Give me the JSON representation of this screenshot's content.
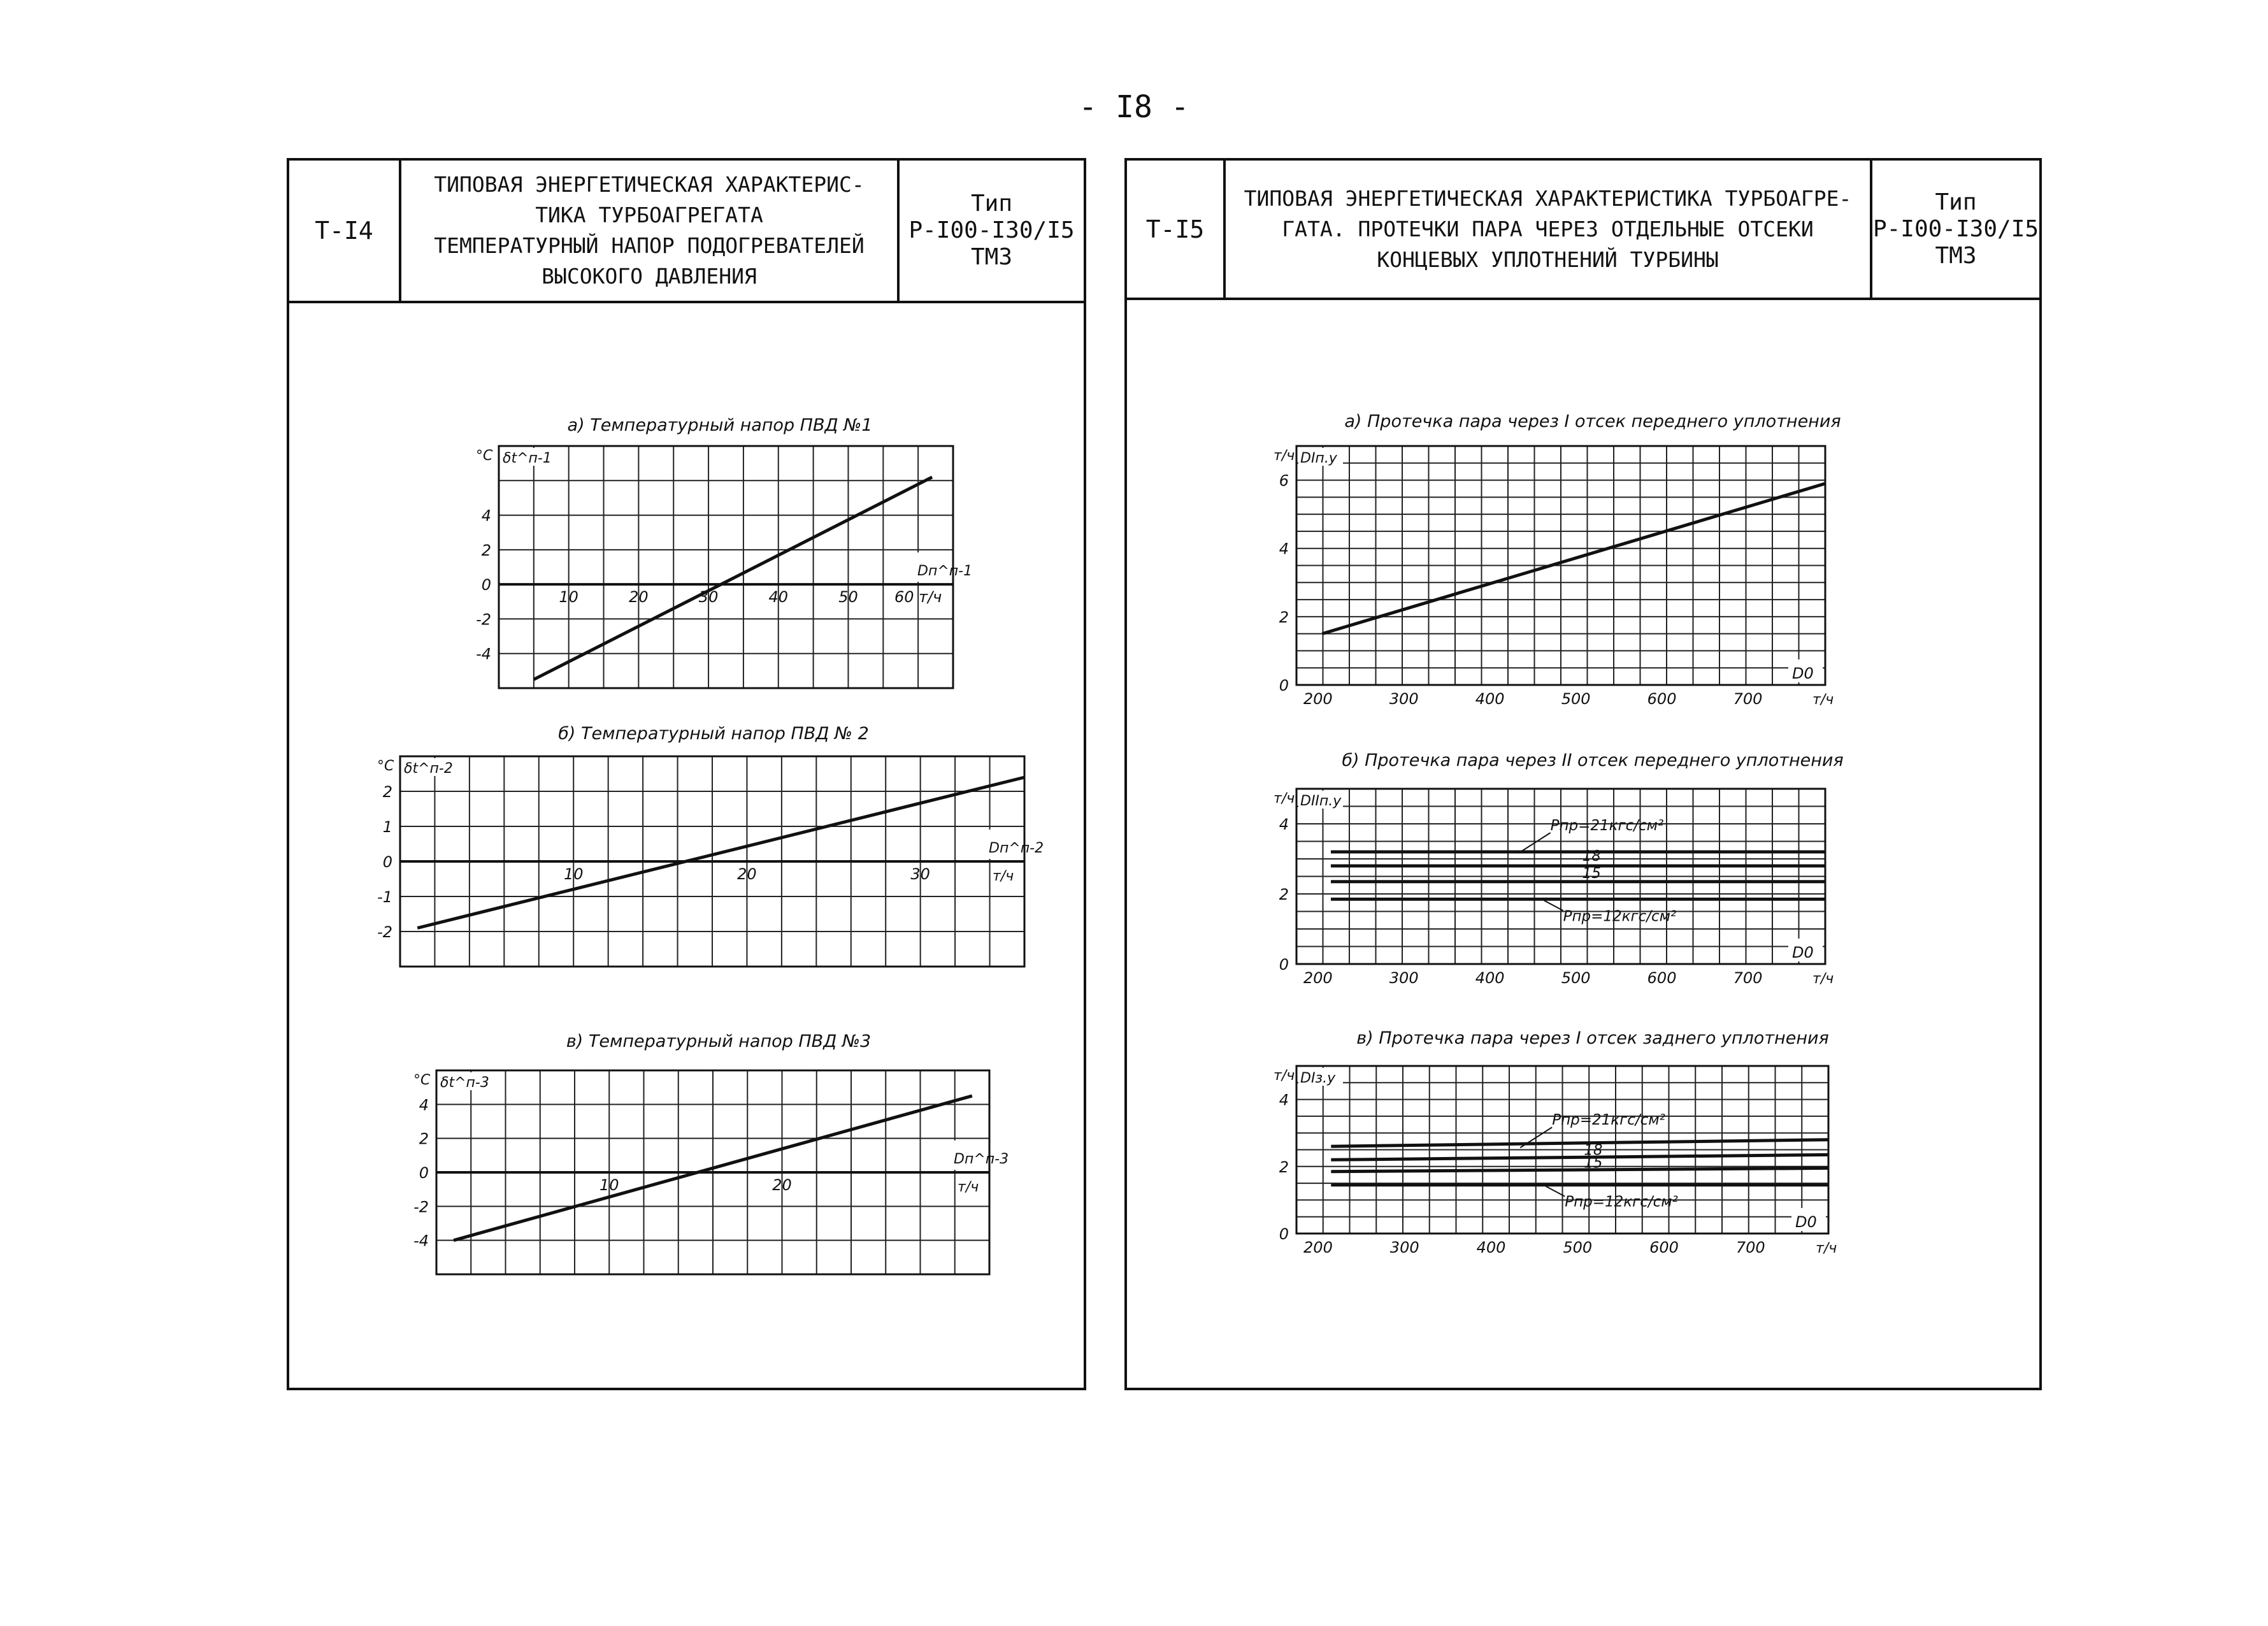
{
  "page_number": "- I8 -",
  "left_sheet": {
    "code": "Т-I4",
    "title_lines": [
      "ТИПОВАЯ ЭНЕРГЕТИЧЕСКАЯ ХАРАКТЕРИС-",
      "ТИКА ТУРБОАГРЕГАТА",
      "ТЕМПЕРАТУРНЫЙ НАПОР ПОДОГРЕВАТЕЛЕЙ",
      "ВЫСОКОГО ДАВЛЕНИЯ"
    ],
    "type_lines": [
      "Тип",
      "Р-I00-I30/I5",
      "ТМЗ"
    ]
  },
  "right_sheet": {
    "code": "Т-I5",
    "title_lines": [
      "ТИПОВАЯ ЭНЕРГЕТИЧЕСКАЯ ХАРАКТЕРИСТИКА ТУРБОАГРЕ-",
      "ГАТА. ПРОТЕЧКИ ПАРА ЧЕРЕЗ ОТДЕЛЬНЫЕ ОТСЕКИ",
      "КОНЦЕВЫХ УПЛОТНЕНИЙ ТУРБИНЫ"
    ],
    "type_lines": [
      "Тип",
      "Р-I00-I30/I5",
      "ТМЗ"
    ]
  },
  "chart_data": [
    {
      "id": "a-left",
      "type": "line",
      "title": "а) Температурный напор ПВД №1",
      "ylabel_unit": "°С",
      "ylabel": "δt^п-1",
      "xlabel": "Dп^п-1",
      "xunit": "т/ч",
      "xlim": [
        0,
        65
      ],
      "ylim": [
        -6,
        8
      ],
      "xticks": [
        10,
        20,
        30,
        40,
        50,
        60
      ],
      "xtick_labels": [
        "10",
        "20",
        "30",
        "40",
        "50",
        "60 т/ч"
      ],
      "yticks": [
        4,
        2,
        0,
        -2,
        -4
      ],
      "ytick_labels": [
        "4",
        "2",
        "0",
        "-2",
        "-4"
      ],
      "series": [
        {
          "x": [
            5,
            62
          ],
          "y": [
            -5.5,
            6.2
          ]
        }
      ]
    },
    {
      "id": "b-left",
      "type": "line",
      "title": "б) Температурный напор ПВД № 2",
      "ylabel_unit": "°С",
      "ylabel": "δt^п-2",
      "xlabel": "Dп^п-2",
      "xunit": "т/ч",
      "xlim": [
        0,
        36
      ],
      "ylim": [
        -3,
        3
      ],
      "xticks": [
        10,
        20,
        30
      ],
      "xtick_labels": [
        "10",
        "20",
        "30"
      ],
      "yticks": [
        2,
        1,
        0,
        -1,
        -2
      ],
      "ytick_labels": [
        "2",
        "1",
        "0",
        "-1",
        "-2"
      ],
      "series": [
        {
          "x": [
            1,
            36
          ],
          "y": [
            -1.9,
            2.4
          ]
        }
      ]
    },
    {
      "id": "c-left",
      "type": "line",
      "title": "в) Температурный напор ПВД №3",
      "ylabel_unit": "°С",
      "ylabel": "δt^п-3",
      "xlabel": "Dп^п-3",
      "xunit": "т/ч",
      "xlim": [
        0,
        32
      ],
      "ylim": [
        -6,
        6
      ],
      "xticks": [
        10,
        20
      ],
      "xtick_labels": [
        "10",
        "20"
      ],
      "yticks": [
        4,
        2,
        0,
        -2,
        -4
      ],
      "ytick_labels": [
        "4",
        "2",
        "0",
        "-2",
        "-4"
      ],
      "series": [
        {
          "x": [
            1,
            31
          ],
          "y": [
            -4,
            4.5
          ]
        }
      ]
    },
    {
      "id": "a-right",
      "type": "line",
      "title": "а) Протечка пара через I отсек переднего уплотнения",
      "ylabel_unit": "т/ч",
      "ylabel": "DIп.у",
      "xlabel": "D0",
      "xunit": "т/ч",
      "xlim": [
        175,
        790
      ],
      "ylim": [
        0,
        7
      ],
      "xticks": [
        200,
        300,
        400,
        500,
        600,
        700
      ],
      "xtick_labels": [
        "200",
        "300",
        "400",
        "500",
        "600",
        "700"
      ],
      "yticks": [
        6,
        4,
        2,
        0
      ],
      "ytick_labels": [
        "6",
        "4",
        "2",
        "0"
      ],
      "series": [
        {
          "x": [
            205,
            790
          ],
          "y": [
            1.5,
            5.9
          ]
        }
      ]
    },
    {
      "id": "b-right",
      "type": "line",
      "title": "б) Протечка пара через II отсек переднего уплотнения",
      "ylabel_unit": "т/ч",
      "ylabel": "DIIп.у",
      "xlabel": "D0",
      "xunit": "т/ч",
      "xlim": [
        175,
        790
      ],
      "ylim": [
        0,
        5
      ],
      "xticks": [
        200,
        300,
        400,
        500,
        600,
        700
      ],
      "xtick_labels": [
        "200",
        "300",
        "400",
        "500",
        "600",
        "700"
      ],
      "yticks": [
        4,
        2,
        0
      ],
      "ytick_labels": [
        "4",
        "2",
        "0"
      ],
      "series": [
        {
          "name": "Рпр=21кгс/см²",
          "x": [
            215,
            790
          ],
          "y": [
            3.2,
            3.2
          ]
        },
        {
          "name": "18",
          "x": [
            215,
            790
          ],
          "y": [
            2.8,
            2.8
          ]
        },
        {
          "name": "15",
          "x": [
            215,
            790
          ],
          "y": [
            2.35,
            2.35
          ]
        },
        {
          "name": "Рпр=12кгс/см²",
          "x": [
            215,
            790
          ],
          "y": [
            1.85,
            1.85
          ]
        }
      ],
      "annotations": [
        "Рпр=21кгс/см²",
        "18",
        "15",
        "Рпр=12кгс/см²"
      ]
    },
    {
      "id": "c-right",
      "type": "line",
      "title": "в) Протечка пара через I отсек заднего уплотнения",
      "ylabel_unit": "т/ч",
      "ylabel": "DIз.у",
      "xlabel": "D0",
      "xunit": "т/ч",
      "xlim": [
        175,
        790
      ],
      "ylim": [
        0,
        5
      ],
      "xticks": [
        200,
        300,
        400,
        500,
        600,
        700
      ],
      "xtick_labels": [
        "200",
        "300",
        "400",
        "500",
        "600",
        "700"
      ],
      "yticks": [
        4,
        2,
        0
      ],
      "ytick_labels": [
        "4",
        "2",
        "0"
      ],
      "series": [
        {
          "name": "Рпр=21кгс/см²",
          "x": [
            215,
            790
          ],
          "y": [
            2.6,
            2.8
          ]
        },
        {
          "name": "18",
          "x": [
            215,
            790
          ],
          "y": [
            2.2,
            2.35
          ]
        },
        {
          "name": "15",
          "x": [
            215,
            790
          ],
          "y": [
            1.85,
            1.95
          ]
        },
        {
          "name": "Рпр=12кгс/см²",
          "x": [
            215,
            790
          ],
          "y": [
            1.45,
            1.45
          ]
        }
      ],
      "annotations": [
        "Рпр=21кгс/см²",
        "18",
        "15",
        "Рпр=12кгс/см²"
      ]
    }
  ]
}
